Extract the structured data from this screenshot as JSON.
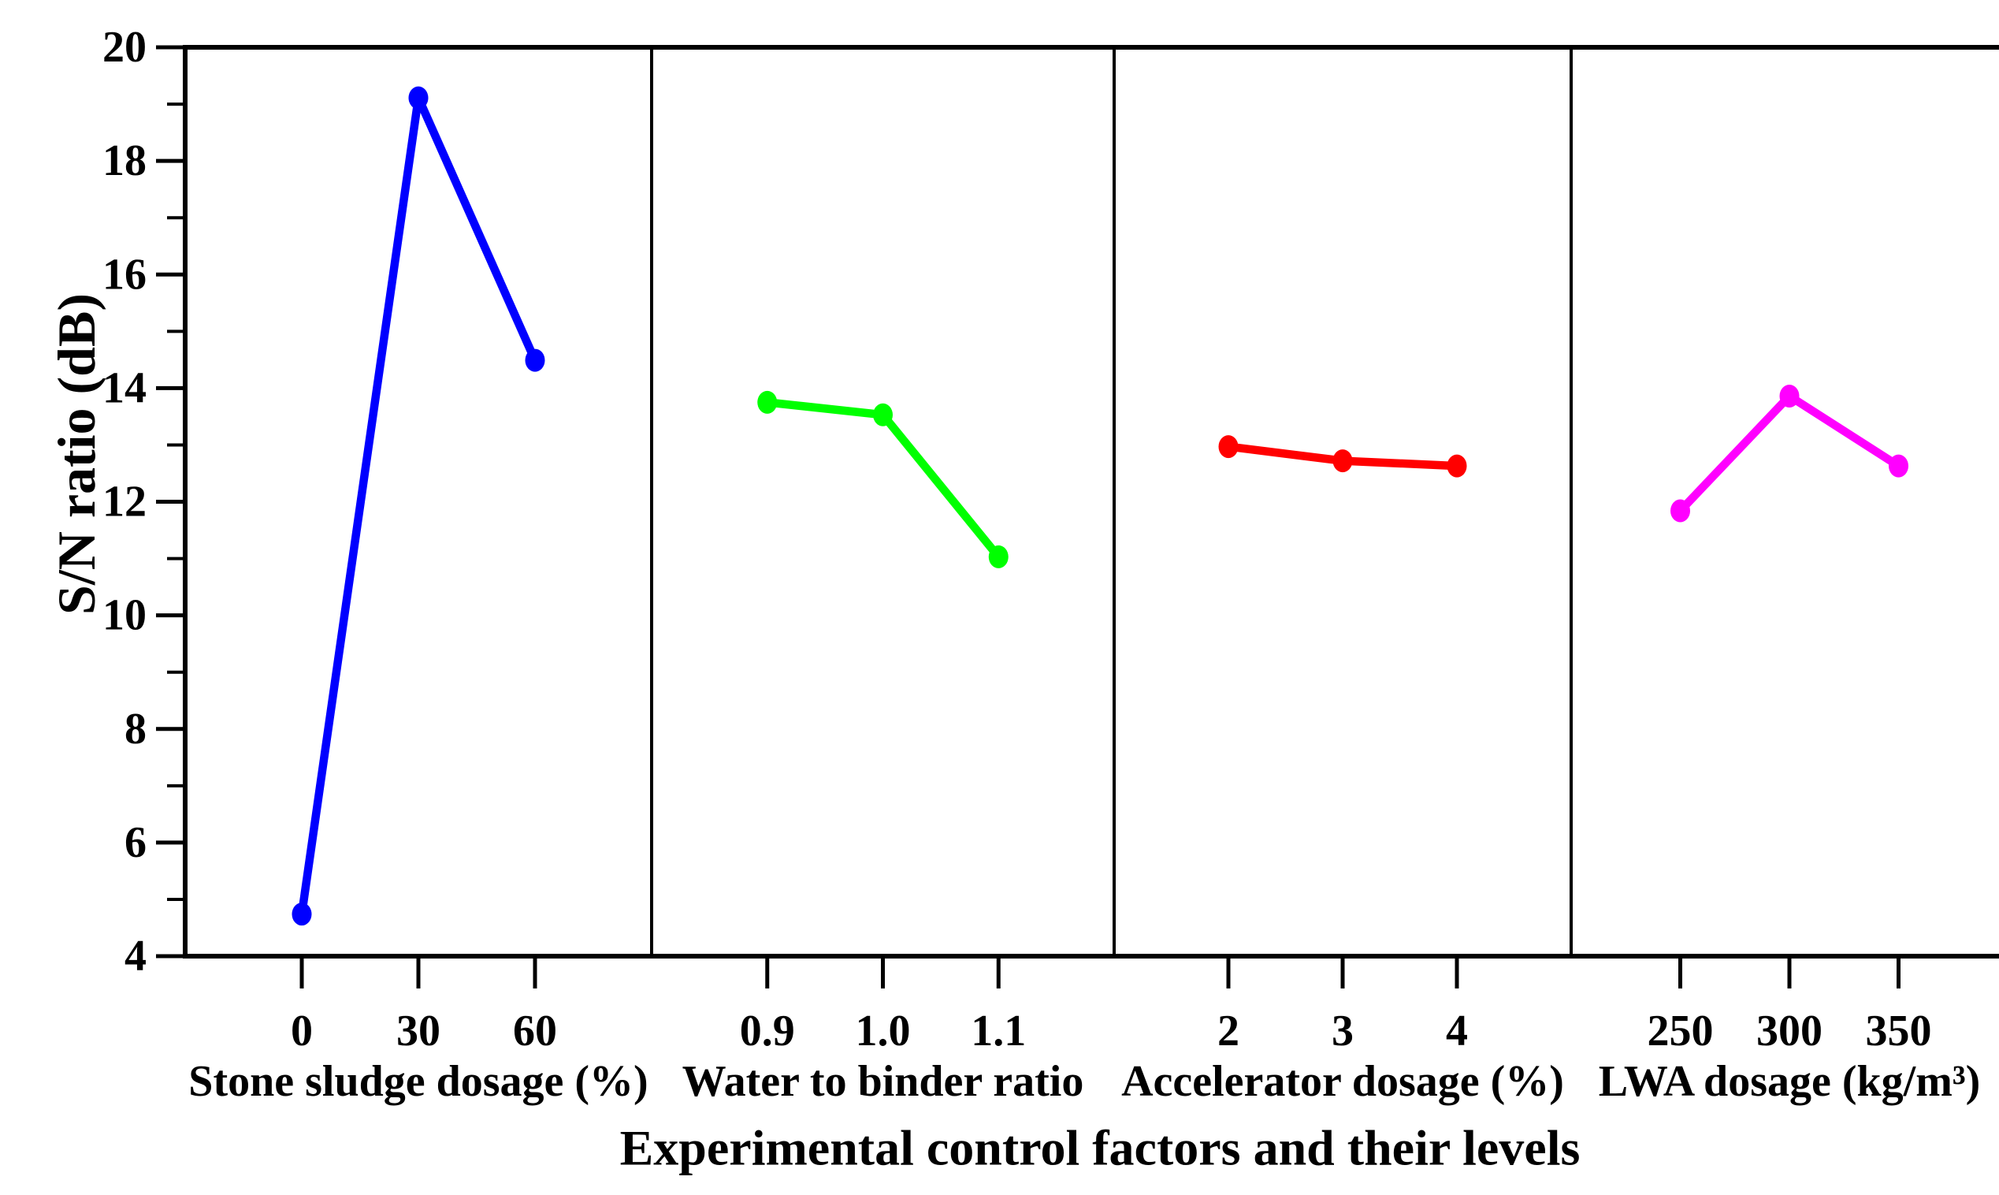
{
  "chart_data": {
    "type": "line",
    "title": "",
    "xlabel": "Experimental control factors and their levels",
    "ylabel": "S/N ratio (dB)",
    "ylim": [
      4,
      20
    ],
    "y_major_tick_step": 2,
    "y_minor_tick_step": 1,
    "y_tick_labels": [
      "4",
      "6",
      "8",
      "10",
      "12",
      "14",
      "16",
      "18",
      "20"
    ],
    "grid": false,
    "legend": "none",
    "background_color": "#FFFFFF",
    "axis_color": "#000000",
    "panels": [
      {
        "id": "stone-sludge-dosage",
        "factor_label": "Stone sludge dosage (%)",
        "levels": [
          "0",
          "30",
          "60"
        ],
        "values": [
          4.74,
          19.11,
          14.49
        ],
        "color": "#0000FF",
        "color_name": "blue"
      },
      {
        "id": "water-to-binder-ratio",
        "factor_label": "Water to binder ratio",
        "levels": [
          "0.9",
          "1.0",
          "1.1"
        ],
        "values": [
          13.75,
          13.53,
          11.03
        ],
        "color": "#00FF00",
        "color_name": "green"
      },
      {
        "id": "accelerator-dosage",
        "factor_label": "Accelerator dosage (%)",
        "levels": [
          "2",
          "3",
          "4"
        ],
        "values": [
          12.97,
          12.72,
          12.63
        ],
        "color": "#FF0000",
        "color_name": "red"
      },
      {
        "id": "lwa-dosage",
        "factor_label": "LWA dosage (kg/m³)",
        "levels": [
          "250",
          "300",
          "350"
        ],
        "values": [
          11.84,
          13.86,
          12.63
        ],
        "color": "#FF00FF",
        "color_name": "magenta"
      }
    ]
  }
}
